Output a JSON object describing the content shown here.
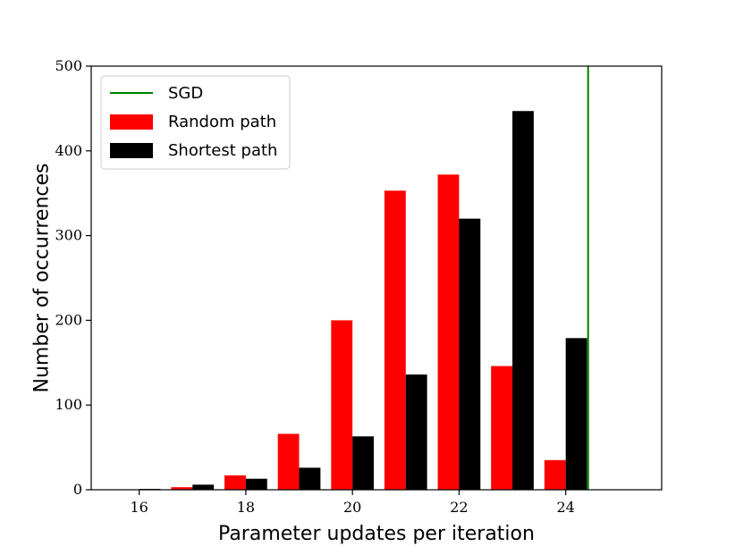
{
  "chart_data": {
    "type": "bar",
    "xlabel": "Parameter updates per iteration",
    "ylabel": "Number of occurrences",
    "xlim": [
      15.1,
      25.8
    ],
    "ylim": [
      0,
      500
    ],
    "x_ticks": [
      16,
      18,
      20,
      22,
      24
    ],
    "y_ticks": [
      0,
      100,
      200,
      300,
      400,
      500
    ],
    "legend_position": "top-left",
    "series": [
      {
        "name": "Random path",
        "kind": "bar",
        "color": "#ff0000",
        "x": [
          16,
          17,
          18,
          19,
          20,
          21,
          22,
          23,
          24
        ],
        "values": [
          0,
          3,
          17,
          66,
          200,
          353,
          372,
          146,
          35
        ]
      },
      {
        "name": "Shortest path",
        "kind": "bar",
        "color": "#000000",
        "x": [
          16,
          17,
          18,
          19,
          20,
          21,
          22,
          23,
          24
        ],
        "values": [
          1,
          6,
          13,
          26,
          63,
          136,
          320,
          447,
          179
        ]
      },
      {
        "name": "SGD",
        "kind": "vline",
        "color": "#008000",
        "x": 24.42
      }
    ]
  }
}
